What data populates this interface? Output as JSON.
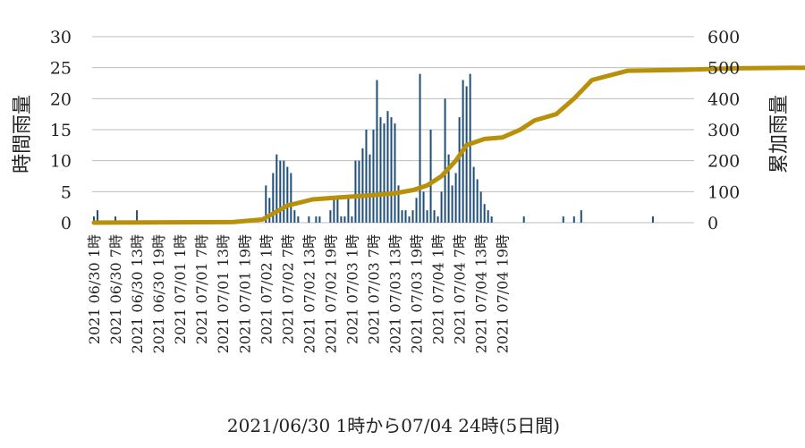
{
  "chart_data": {
    "type": "bar",
    "title": "",
    "xlabel": "2021/06/30 1時から07/04 24時(5日間)",
    "ylabel": "時間雨量",
    "y2label": "累加雨量",
    "ylim": [
      0,
      30
    ],
    "y2lim": [
      0,
      600
    ],
    "yticks": [
      0,
      5,
      10,
      15,
      20,
      25,
      30
    ],
    "y2ticks": [
      0,
      100,
      200,
      300,
      400,
      500,
      600
    ],
    "grid": true,
    "colors": {
      "bars": "#1f4e79",
      "line": "#b8900a",
      "grid": "#bdbdbd"
    },
    "x_tick_labels": [
      "2021 06/30 1時",
      "2021 06/30 7時",
      "2021 06/30 13時",
      "2021 06/30 19時",
      "2021 07/01 1時",
      "2021 07/01 7時",
      "2021 07/01 13時",
      "2021 07/01 19時",
      "2021 07/02 1時",
      "2021 07/02 7時",
      "2021 07/02 13時",
      "2021 07/02 19時",
      "2021 07/03 1時",
      "2021 07/03 7時",
      "2021 07/03 13時",
      "2021 07/03 19時",
      "2021 07/04 1時",
      "2021 07/04 7時",
      "2021 07/04 13時",
      "2021 07/04 19時"
    ],
    "series": [
      {
        "kind": "bar",
        "axis": "left",
        "values": [
          1,
          2,
          0,
          0,
          0,
          0,
          1,
          0,
          0,
          0,
          0,
          0,
          2,
          0,
          0,
          0,
          0,
          0,
          0,
          0,
          0,
          0,
          0,
          0,
          0,
          0,
          0,
          0,
          0,
          0,
          0,
          0,
          0,
          0,
          0,
          0,
          0,
          0,
          0,
          0,
          0,
          0,
          0,
          0,
          0,
          0,
          0,
          0,
          6,
          4,
          8,
          11,
          10,
          10,
          9,
          8,
          2,
          1,
          0,
          0,
          1,
          0,
          1,
          1,
          0,
          0,
          2,
          4,
          4,
          1,
          1,
          4,
          1,
          10,
          10,
          12,
          15,
          11,
          15,
          23,
          17,
          16,
          18,
          17,
          16,
          6,
          2,
          2,
          1,
          2,
          4,
          24,
          5,
          2,
          15,
          2,
          1,
          5,
          20,
          11,
          6,
          8,
          17,
          23,
          22,
          24,
          9,
          7,
          5,
          3,
          2,
          1,
          0,
          0,
          0,
          0,
          0,
          0,
          0,
          0,
          1,
          0,
          0,
          0,
          0,
          0,
          0,
          0,
          0,
          0,
          0,
          1,
          0,
          0,
          1,
          0,
          2,
          0,
          0,
          0,
          0,
          0,
          0,
          0,
          0,
          0,
          0,
          0,
          0,
          0,
          0,
          0,
          0,
          0,
          0,
          0,
          1,
          0,
          0,
          0,
          0,
          0,
          0,
          0,
          0,
          0,
          0,
          0
        ]
      },
      {
        "kind": "line",
        "axis": "right",
        "x": [
          1,
          40,
          48,
          55,
          62,
          70,
          78,
          85,
          90,
          94,
          98,
          102,
          105,
          110,
          115,
          120,
          124,
          130,
          135,
          140,
          150,
          165,
          180,
          200
        ],
        "values": [
          0,
          2,
          10,
          55,
          75,
          82,
          88,
          95,
          105,
          120,
          150,
          200,
          250,
          270,
          275,
          300,
          330,
          350,
          400,
          460,
          490,
          493,
          498,
          500
        ]
      }
    ]
  }
}
